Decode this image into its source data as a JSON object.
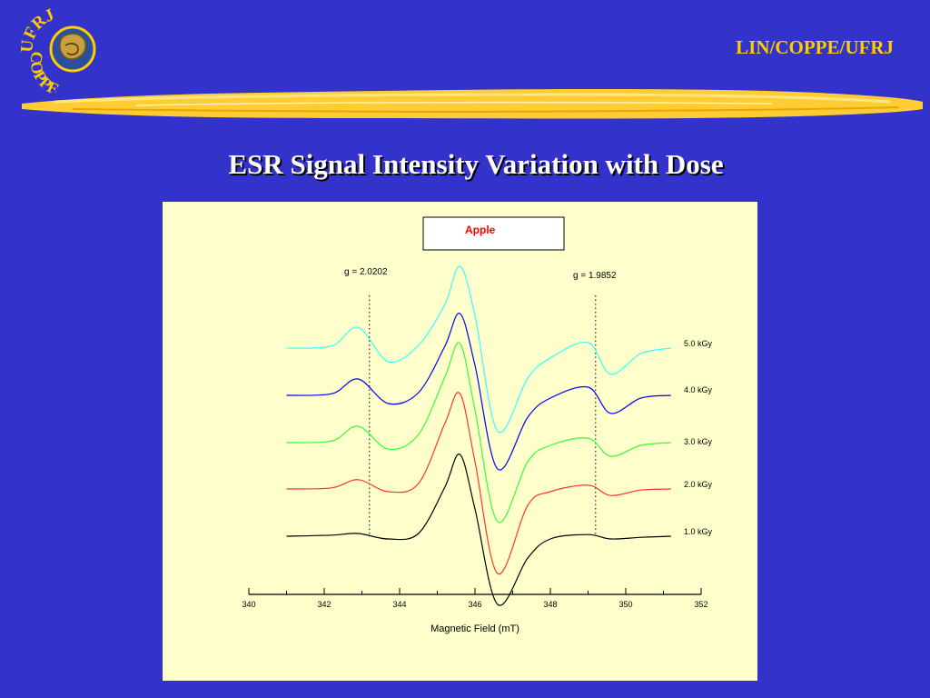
{
  "header": {
    "org_label": "LIN/COPPE/UFRJ",
    "logo_text_top": "UFRJ",
    "logo_text_bottom": "COPPE",
    "accent_color": "#ffcc00",
    "background_color": "#3333cc"
  },
  "slide": {
    "title": "ESR Signal Intensity Variation with Dose"
  },
  "chart_data": {
    "type": "line",
    "title": "",
    "xlabel": "Magnetic Field (mT)",
    "ylabel": "",
    "xlim": [
      340,
      352
    ],
    "x_ticks": [
      340,
      342,
      344,
      346,
      348,
      350,
      352
    ],
    "x_tick_labels": [
      "340",
      "342",
      "344",
      "346",
      "348",
      "350",
      "352"
    ],
    "grid": false,
    "legend_box": {
      "text": "Apple",
      "color": "#ff0000",
      "placement": "top-center"
    },
    "annotations": [
      {
        "text": "g = 2.0202",
        "x": 343.2
      },
      {
        "text": "g = 1.9852",
        "x": 349.2
      }
    ],
    "series": [
      {
        "name": "5.0 kGy",
        "color": "#33ffff",
        "x": [
          341.0,
          342.2,
          342.9,
          343.7,
          344.5,
          345.2,
          345.6,
          346.0,
          346.6,
          347.4,
          348.0,
          349.0,
          349.6,
          350.4,
          351.2
        ],
        "y": [
          0.0,
          0.04,
          0.38,
          -0.25,
          0.05,
          0.8,
          1.5,
          0.6,
          -1.52,
          -0.55,
          -0.18,
          0.1,
          -0.48,
          -0.1,
          0.0
        ]
      },
      {
        "name": "4.0 kGy",
        "color": "#0000ff",
        "x": [
          341.0,
          342.2,
          342.9,
          343.7,
          344.5,
          345.2,
          345.6,
          346.0,
          346.6,
          347.4,
          348.0,
          349.0,
          349.6,
          350.4,
          351.2
        ],
        "y": [
          0.0,
          0.03,
          0.3,
          -0.15,
          0.05,
          0.9,
          1.5,
          0.55,
          -1.35,
          -0.4,
          -0.05,
          0.15,
          -0.33,
          -0.05,
          0.0
        ]
      },
      {
        "name": "3.0 kGy",
        "color": "#33ff33",
        "x": [
          341.0,
          342.2,
          342.9,
          343.7,
          344.5,
          345.2,
          345.6,
          346.0,
          346.6,
          347.4,
          348.0,
          349.0,
          349.6,
          350.4,
          351.2
        ],
        "y": [
          0.0,
          0.03,
          0.3,
          -0.12,
          0.15,
          1.2,
          1.82,
          0.6,
          -1.45,
          -0.35,
          -0.05,
          0.08,
          -0.25,
          -0.05,
          0.0
        ]
      },
      {
        "name": "2.0 kGy",
        "color": "#ff3333",
        "x": [
          341.0,
          342.2,
          342.9,
          343.7,
          344.5,
          345.2,
          345.6,
          346.0,
          346.6,
          347.4,
          348.0,
          349.0,
          349.6,
          350.4,
          351.2
        ],
        "y": [
          0.0,
          0.02,
          0.17,
          -0.05,
          0.1,
          1.2,
          1.75,
          0.5,
          -1.55,
          -0.3,
          -0.05,
          0.07,
          -0.12,
          -0.02,
          0.0
        ]
      },
      {
        "name": "1.0  kGy",
        "color": "#000000",
        "x": [
          341.0,
          342.2,
          342.9,
          343.7,
          344.5,
          345.2,
          345.6,
          346.0,
          346.6,
          347.4,
          348.0,
          349.0,
          349.6,
          350.4,
          351.2
        ],
        "y": [
          0.0,
          0.02,
          0.05,
          -0.05,
          0.05,
          0.9,
          1.5,
          0.5,
          -1.25,
          -0.4,
          -0.05,
          0.03,
          -0.05,
          -0.02,
          0.0
        ]
      }
    ]
  }
}
